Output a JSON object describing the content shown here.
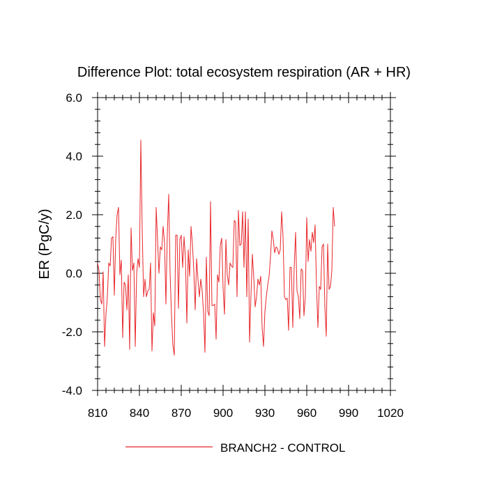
{
  "chart_data": {
    "type": "line",
    "title": "Difference Plot: total ecosystem respiration (AR + HR)",
    "xlabel": "",
    "ylabel": "ER  (PgC/y)",
    "xlim": [
      810,
      1020
    ],
    "ylim": [
      -4.0,
      6.0
    ],
    "xticks": [
      810,
      840,
      870,
      900,
      930,
      960,
      990,
      1020
    ],
    "xtick_labels": [
      "810",
      "840",
      "870",
      "900",
      "930",
      "960",
      "990",
      "1020"
    ],
    "yticks": [
      -4.0,
      -2.0,
      0.0,
      2.0,
      4.0,
      6.0
    ],
    "ytick_labels": [
      "-4.0",
      "-2.0",
      "0.0",
      "2.0",
      "4.0",
      "6.0"
    ],
    "grid": false,
    "legend_position": "bottom",
    "series": [
      {
        "name": "BRANCH2 - CONTROL",
        "color": "#e8262a",
        "x_start": 810,
        "x_step": 1,
        "values": [
          0.35,
          0.1,
          -0.9,
          -1.05,
          0.05,
          -2.5,
          -1.4,
          -0.8,
          0.35,
          0.25,
          1.2,
          1.25,
          -0.75,
          1.2,
          2.0,
          2.25,
          -0.05,
          0.45,
          -2.2,
          -0.3,
          -0.4,
          -1.25,
          -0.05,
          -2.6,
          1.55,
          0.1,
          0.35,
          -2.5,
          0.0,
          0.5,
          0.2,
          4.55,
          1.5,
          -0.8,
          -0.2,
          -0.8,
          -0.6,
          -0.55,
          0.35,
          -2.65,
          -1.35,
          -1.8,
          2.25,
          1.15,
          0.0,
          0.9,
          0.8,
          1.6,
          1.05,
          -1.05,
          1.35,
          2.7,
          0.0,
          -1.45,
          -2.45,
          -2.8,
          1.3,
          1.3,
          -1.2,
          1.15,
          1.3,
          0.2,
          1.25,
          0.5,
          -1.7,
          0.8,
          -0.1,
          1.6,
          1.0,
          0.1,
          -1.25,
          0.5,
          -0.2,
          -0.8,
          -0.2,
          -0.6,
          -1.35,
          -2.7,
          0.55,
          -1.3,
          -1.45,
          2.45,
          -1.1,
          -1.1,
          -1.05,
          -2.25,
          -0.05,
          -0.3,
          0.95,
          1.2,
          -0.5,
          -1.4,
          1.15,
          -0.05,
          -0.4,
          0.35,
          0.25,
          0.2,
          1.8,
          1.75,
          -0.8,
          2.15,
          0.95,
          1.0,
          2.1,
          0.2,
          2.1,
          -0.8,
          1.85,
          -2.35,
          -0.75,
          0.65,
          -0.15,
          -1.15,
          -0.8,
          -0.2,
          -0.4,
          -0.1,
          -1.85,
          -2.5,
          -1.3,
          -0.8,
          -0.4,
          -0.1,
          0.55,
          1.45,
          1.15,
          0.7,
          0.9,
          0.85,
          0.65,
          0.8,
          2.1,
          1.25,
          -0.8,
          -0.9,
          -0.85,
          -1.95,
          0.2,
          0.2,
          -1.85,
          0.2,
          1.4,
          -0.6,
          -0.8,
          -1.55,
          0.15,
          0.1,
          -1.45,
          -0.8,
          1.9,
          0.4,
          1.15,
          0.75,
          1.4,
          1.05,
          1.65,
          -0.45,
          -1.85,
          -0.45,
          -0.55,
          0.9,
          1.0,
          -1.15,
          -2.15,
          1.0,
          -0.55,
          -0.45,
          0.1,
          2.25,
          1.6
        ]
      }
    ]
  }
}
